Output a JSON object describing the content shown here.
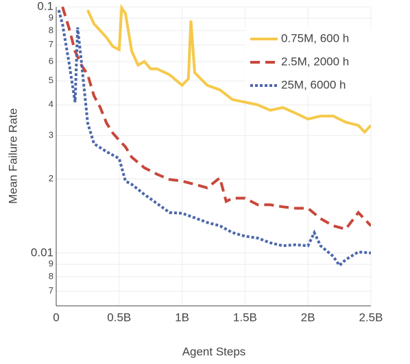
{
  "chart_data": {
    "type": "line",
    "xlabel": "Agent Steps",
    "ylabel": "Mean Failure Rate",
    "log_y": true,
    "grid": true,
    "legend": "upper right",
    "xlim": [
      0,
      2500000000
    ],
    "xticks": [
      0,
      {
        "value": 500000000,
        "label": "0.5B"
      },
      {
        "value": 1000000000,
        "label": "1B"
      },
      {
        "value": 1500000000,
        "label": "1.5B"
      },
      {
        "value": 2000000000,
        "label": "2B"
      },
      {
        "value": 2500000000,
        "label": "2.5B"
      }
    ],
    "ylim": [
      0.0061,
      0.1
    ],
    "yticks": [
      0.1,
      {
        "value": 0.09,
        "label": "9"
      },
      {
        "value": 0.08,
        "label": "8"
      },
      {
        "value": 0.07,
        "label": "7"
      },
      {
        "value": 0.06,
        "label": "6"
      },
      {
        "value": 0.05,
        "label": "5"
      },
      {
        "value": 0.04,
        "label": "4"
      },
      {
        "value": 0.03,
        "label": "3"
      },
      {
        "value": 0.02,
        "label": "2"
      },
      0.01,
      {
        "value": 0.009,
        "label": "9"
      },
      {
        "value": 0.008,
        "label": "8"
      },
      {
        "value": 0.007,
        "label": "7"
      }
    ],
    "series": [
      {
        "name": "0.75M, 600 h",
        "color": "#f5c94b",
        "dash": "solid",
        "x": [
          250000000.0,
          300000000.0,
          350000000.0,
          400000000.0,
          450000000.0,
          500000000.0,
          520000000.0,
          550000000.0,
          600000000.0,
          650000000.0,
          700000000.0,
          750000000.0,
          800000000.0,
          900000000.0,
          1000000000.0,
          1050000000.0,
          1070000000.0,
          1100000000.0,
          1200000000.0,
          1300000000.0,
          1400000000.0,
          1500000000.0,
          1600000000.0,
          1700000000.0,
          1800000000.0,
          1900000000.0,
          2000000000.0,
          2100000000.0,
          2200000000.0,
          2300000000.0,
          2400000000.0,
          2450000000.0,
          2500000000.0
        ],
        "values": [
          0.097,
          0.0853,
          0.08,
          0.075,
          0.069,
          0.067,
          0.099,
          0.094,
          0.066,
          0.058,
          0.06,
          0.056,
          0.056,
          0.053,
          0.048,
          0.051,
          0.088,
          0.054,
          0.048,
          0.046,
          0.042,
          0.041,
          0.04,
          0.038,
          0.039,
          0.037,
          0.035,
          0.036,
          0.036,
          0.034,
          0.033,
          0.031,
          0.033
        ]
      },
      {
        "name": "2.5M, 2000 h",
        "color": "#c8473b",
        "dash": "dashed",
        "x": [
          50000000.0,
          100000000.0,
          150000000.0,
          200000000.0,
          250000000.0,
          300000000.0,
          350000000.0,
          400000000.0,
          450000000.0,
          500000000.0,
          550000000.0,
          600000000.0,
          700000000.0,
          800000000.0,
          900000000.0,
          1000000000.0,
          1100000000.0,
          1200000000.0,
          1300000000.0,
          1350000000.0,
          1400000000.0,
          1500000000.0,
          1600000000.0,
          1700000000.0,
          1800000000.0,
          1900000000.0,
          2000000000.0,
          2100000000.0,
          2200000000.0,
          2300000000.0,
          2400000000.0,
          2500000000.0
        ],
        "values": [
          0.1,
          0.0825,
          0.066,
          0.058,
          0.053,
          0.0435,
          0.039,
          0.0337,
          0.0307,
          0.0287,
          0.027,
          0.0245,
          0.0222,
          0.0209,
          0.0199,
          0.0196,
          0.019,
          0.0184,
          0.0202,
          0.0162,
          0.0167,
          0.0167,
          0.0157,
          0.0157,
          0.0154,
          0.0152,
          0.0152,
          0.0138,
          0.0129,
          0.0125,
          0.0146,
          0.0129
        ]
      },
      {
        "name": "25M, 6000 h",
        "color": "#4c68aa",
        "dash": "dotted",
        "x": [
          20000000.0,
          50000000.0,
          100000000.0,
          150000000.0,
          170000000.0,
          200000000.0,
          250000000.0,
          300000000.0,
          400000000.0,
          500000000.0,
          550000000.0,
          600000000.0,
          700000000.0,
          800000000.0,
          900000000.0,
          1000000000.0,
          1100000000.0,
          1200000000.0,
          1300000000.0,
          1400000000.0,
          1500000000.0,
          1600000000.0,
          1700000000.0,
          1800000000.0,
          1900000000.0,
          2000000000.0,
          2050000000.0,
          2100000000.0,
          2200000000.0,
          2250000000.0,
          2300000000.0,
          2400000000.0,
          2500000000.0
        ],
        "values": [
          0.097,
          0.085,
          0.06,
          0.041,
          0.0825,
          0.06,
          0.0337,
          0.0278,
          0.0258,
          0.0242,
          0.0196,
          0.019,
          0.0173,
          0.0159,
          0.0146,
          0.0145,
          0.0139,
          0.0133,
          0.0129,
          0.0121,
          0.0117,
          0.0115,
          0.011,
          0.0107,
          0.0108,
          0.0107,
          0.0121,
          0.0107,
          0.0097,
          0.0089,
          0.0094,
          0.0101,
          0.01
        ]
      }
    ]
  }
}
